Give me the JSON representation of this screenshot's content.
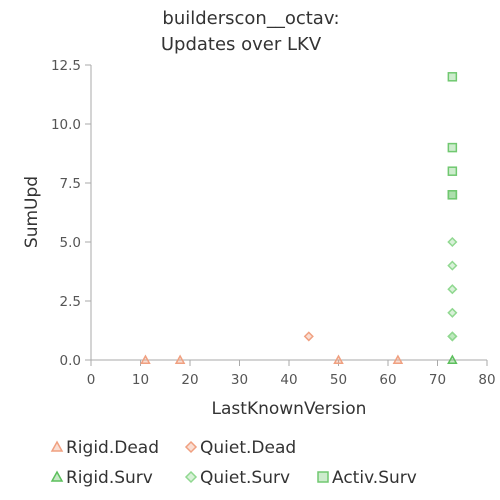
{
  "chart_data": {
    "type": "scatter",
    "title_lines": [
      "builderscon__octav:",
      "Updates over LKV"
    ],
    "xlabel": "LastKnownVersion",
    "ylabel": "SumUpd",
    "xlim": [
      0,
      80
    ],
    "ylim": [
      0,
      12.5
    ],
    "x_ticks": [
      0,
      10,
      20,
      30,
      40,
      50,
      60,
      70,
      80
    ],
    "y_ticks": [
      0,
      2.5,
      5,
      7.5,
      10,
      12.5
    ],
    "y_tick_labels": [
      "0.0",
      "2.5",
      "5.0",
      "7.5",
      "10.0",
      "12.5"
    ],
    "grid": false,
    "legend_position": "bottom",
    "series": [
      {
        "name": "Rigid.Dead",
        "marker": "triangle",
        "color": "#f0a080",
        "points": [
          [
            11,
            0
          ],
          [
            18,
            0
          ],
          [
            50,
            0
          ],
          [
            62,
            0
          ]
        ]
      },
      {
        "name": "Quiet.Dead",
        "marker": "diamond",
        "color": "#f0a080",
        "points": [
          [
            44,
            1
          ]
        ]
      },
      {
        "name": "Rigid.Surv",
        "marker": "triangle",
        "color": "#5cbf5c",
        "points": [
          [
            73,
            0
          ]
        ]
      },
      {
        "name": "Quiet.Surv",
        "marker": "diamond",
        "color": "#90d890",
        "points": [
          [
            73,
            1
          ],
          [
            73,
            1
          ],
          [
            73,
            2
          ],
          [
            73,
            3
          ],
          [
            73,
            4
          ],
          [
            73,
            5
          ]
        ]
      },
      {
        "name": "Activ.Surv",
        "marker": "square",
        "color": "#70c870",
        "points": [
          [
            73,
            7
          ],
          [
            73,
            7
          ],
          [
            73,
            8
          ],
          [
            73,
            9
          ],
          [
            73,
            12
          ]
        ]
      }
    ]
  }
}
